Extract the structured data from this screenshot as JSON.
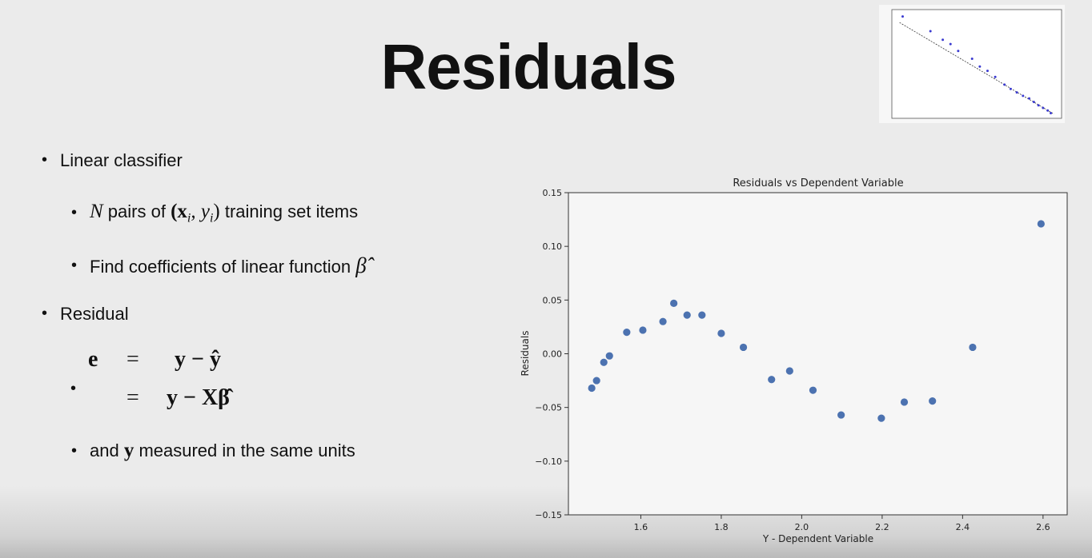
{
  "slide": {
    "title": "Residuals",
    "bullets": {
      "b1": "Linear classifier",
      "b2_var": "N",
      "b2_mid": " pairs of ",
      "b2_math": "(x",
      "b2_sub_i": "i",
      "b2_comma": ", y",
      "b2_sub_i2": "i",
      "b2_close": ")",
      "b2_tail": " training set items",
      "b3_text": "Find coefficients of linear function ",
      "b3_math": "β̂",
      "b4": "Residual",
      "eq_line1_lhs": "e",
      "eq_line1_eq": "=",
      "eq_line1_rhs": "y − ŷ",
      "eq_line2_eq": "=",
      "eq_line2_rhs": "y − Xβ̂",
      "b6_pre": " and ",
      "b6_y": "y",
      "b6_tail": " measured in the same units"
    }
  },
  "chart_data": [
    {
      "type": "scatter",
      "title": "Residuals vs Dependent Variable",
      "xlabel": "Y - Dependent Variable",
      "ylabel": "Residuals",
      "xlim": [
        1.42,
        2.66
      ],
      "ylim": [
        -0.15,
        0.15
      ],
      "xticks": [
        1.6,
        1.8,
        2.0,
        2.2,
        2.4,
        2.6
      ],
      "xtick_labels": [
        "1.6",
        "1.8",
        "2.0",
        "2.2",
        "2.4",
        "2.6"
      ],
      "yticks": [
        -0.15,
        -0.1,
        -0.05,
        0.0,
        0.05,
        0.1,
        0.15
      ],
      "ytick_labels": [
        "−0.15",
        "−0.10",
        "−0.05",
        "0.00",
        "0.05",
        "0.10",
        "0.15"
      ],
      "marker_color": "#4c72b0",
      "x": [
        1.478,
        1.49,
        1.508,
        1.522,
        1.565,
        1.605,
        1.655,
        1.682,
        1.715,
        1.752,
        1.8,
        1.855,
        1.925,
        1.97,
        2.028,
        2.098,
        2.198,
        2.255,
        2.325,
        2.425,
        2.595
      ],
      "y": [
        -0.032,
        -0.025,
        -0.008,
        -0.002,
        0.02,
        0.022,
        0.03,
        0.047,
        0.036,
        0.036,
        0.019,
        0.006,
        -0.024,
        -0.016,
        -0.034,
        -0.057,
        -0.06,
        -0.045,
        -0.044,
        0.006,
        0.121
      ]
    },
    {
      "type": "scatter",
      "title": "",
      "marker_color": "#3b3bd0",
      "line_color": "#333333",
      "x": [
        1.02,
        1.2,
        1.28,
        1.33,
        1.38,
        1.47,
        1.52,
        1.57,
        1.62,
        1.68,
        1.72,
        1.76,
        1.8,
        1.84,
        1.87,
        1.9,
        1.93,
        1.96,
        1.98
      ],
      "y": [
        2.6,
        2.43,
        2.33,
        2.28,
        2.2,
        2.11,
        2.02,
        1.97,
        1.9,
        1.81,
        1.76,
        1.72,
        1.68,
        1.65,
        1.61,
        1.57,
        1.54,
        1.51,
        1.48
      ],
      "fit_line": {
        "x": [
          1.0,
          2.0
        ],
        "y": [
          2.53,
          1.47
        ]
      }
    }
  ]
}
